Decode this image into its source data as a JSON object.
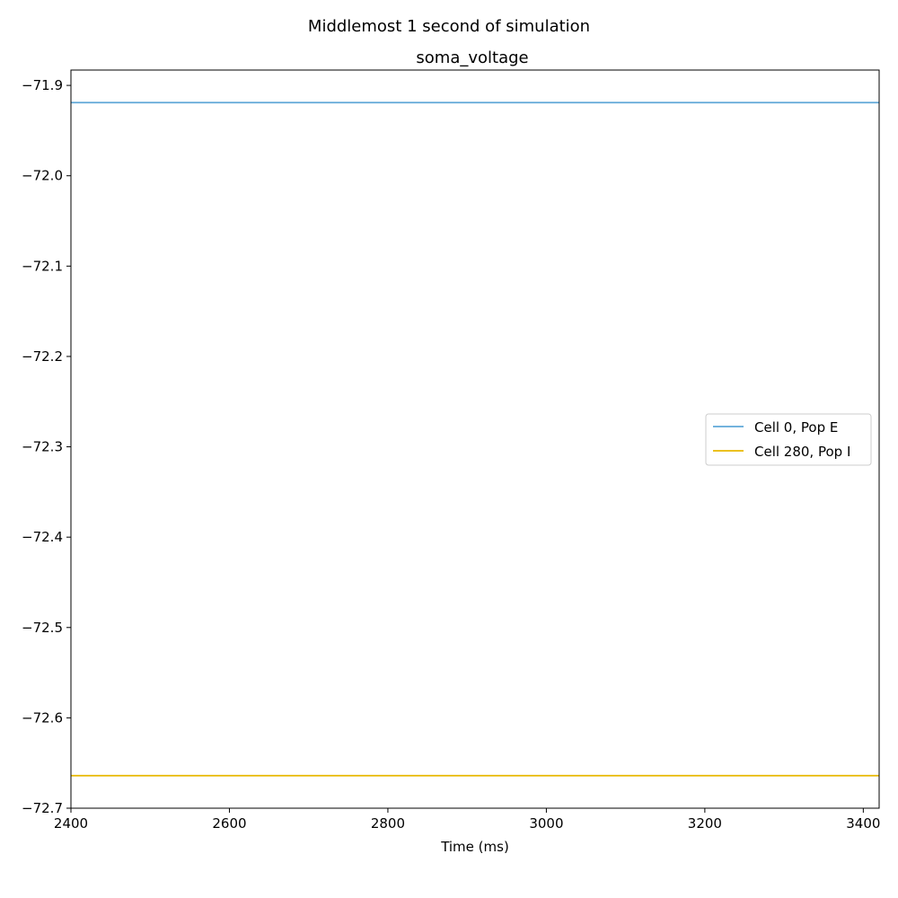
{
  "chart_data": {
    "type": "line",
    "suptitle": "Middlemost 1 second of simulation",
    "title": "soma_voltage",
    "xlabel": "Time (ms)",
    "ylabel": "",
    "xlim": [
      2400,
      3420
    ],
    "ylim": [
      -72.7,
      -71.883
    ],
    "xticks": [
      2400,
      2600,
      2800,
      3000,
      3200,
      3400
    ],
    "xtick_labels": [
      "2400",
      "2600",
      "2800",
      "3000",
      "3200",
      "3400"
    ],
    "yticks": [
      -71.9,
      -72.0,
      -72.1,
      -72.2,
      -72.3,
      -72.4,
      -72.5,
      -72.6,
      -72.7
    ],
    "ytick_labels": [
      "−71.9",
      "−72.0",
      "−72.1",
      "−72.2",
      "−72.3",
      "−72.4",
      "−72.5",
      "−72.6",
      "−72.7"
    ],
    "grid": false,
    "legend_position": "center-right",
    "series": [
      {
        "name": "Cell 0, Pop E",
        "color": "#5fa8d8",
        "x": [
          2400,
          3420
        ],
        "y": [
          -71.919,
          -71.919
        ]
      },
      {
        "name": "Cell 280, Pop I",
        "color": "#e8b800",
        "x": [
          2400,
          3420
        ],
        "y": [
          -72.664,
          -72.664
        ]
      }
    ]
  }
}
